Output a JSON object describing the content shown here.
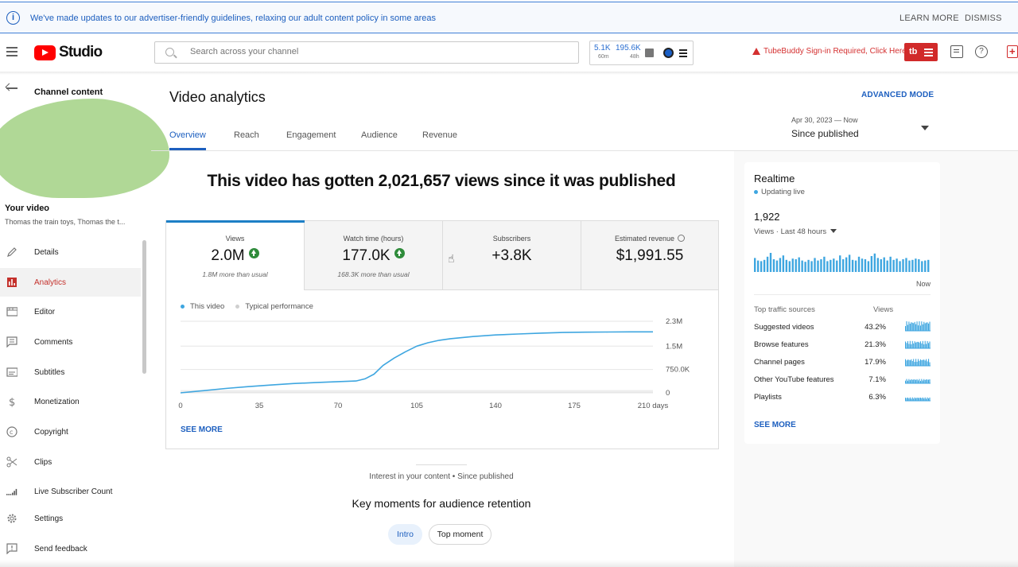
{
  "banner": {
    "message": "We've made updates to our advertiser-friendly guidelines, relaxing our adult content policy in some areas",
    "learn_more": "LEARN MORE",
    "dismiss": "DISMISS"
  },
  "header": {
    "logo_text": "Studio",
    "search_placeholder": "Search across your channel",
    "stats": [
      {
        "value": "5.1K",
        "period": "60m"
      },
      {
        "value": "195.6K",
        "period": "48h"
      }
    ],
    "tubebuddy_warning": "TubeBuddy Sign-in Required, Click Here",
    "tubebuddy_button": "tb",
    "help_glyph": "?"
  },
  "sidebar": {
    "title": "Channel content",
    "your_video_label": "Your video",
    "video_title": "Thomas the train toys, Thomas the t...",
    "items": [
      {
        "label": "Details",
        "icon": "pencil-icon"
      },
      {
        "label": "Analytics",
        "icon": "analytics-icon"
      },
      {
        "label": "Editor",
        "icon": "film-icon"
      },
      {
        "label": "Comments",
        "icon": "comment-icon"
      },
      {
        "label": "Subtitles",
        "icon": "subtitles-icon"
      },
      {
        "label": "Monetization",
        "icon": "dollar-icon"
      },
      {
        "label": "Copyright",
        "icon": "copyright-icon"
      },
      {
        "label": "Clips",
        "icon": "scissors-icon"
      },
      {
        "label": "Live Subscriber Count",
        "icon": "signal-bars-icon"
      },
      {
        "label": "Settings",
        "icon": "gear-icon"
      },
      {
        "label": "Send feedback",
        "icon": "feedback-icon"
      }
    ],
    "active_item": "Analytics"
  },
  "main": {
    "title": "Video analytics",
    "advanced_mode": "ADVANCED MODE",
    "tabs": [
      "Overview",
      "Reach",
      "Engagement",
      "Audience",
      "Revenue"
    ],
    "active_tab": "Overview",
    "date_range": "Apr 30, 2023 — Now",
    "date_label": "Since published",
    "headline": "This video has gotten 2,021,657 views since it was published",
    "metrics": [
      {
        "name": "Views",
        "value": "2.0M",
        "trend": "up",
        "sub": "1.8M more than usual"
      },
      {
        "name": "Watch time (hours)",
        "value": "177.0K",
        "trend": "up",
        "sub": "168.3K more than usual"
      },
      {
        "name": "Subscribers",
        "value": "+3.8K",
        "trend": "",
        "sub": ""
      },
      {
        "name": "Estimated revenue",
        "value": "$1,991.55",
        "trend": "",
        "sub": ""
      }
    ],
    "legend": {
      "this_video": "This video",
      "typical": "Typical performance"
    },
    "see_more": "SEE MORE",
    "interest_line": "Interest in your content • Since published",
    "key_moments_title": "Key moments for audience retention",
    "chips": [
      "Intro",
      "Top moment"
    ]
  },
  "chart_data": {
    "type": "line",
    "title": "",
    "xlabel": "",
    "ylabel": "",
    "x_ticks": [
      "0",
      "35",
      "70",
      "105",
      "140",
      "175",
      "210 days"
    ],
    "y_ticks": [
      "0",
      "750.0K",
      "1.5M",
      "2.3M"
    ],
    "xlim": [
      0,
      210
    ],
    "ylim": [
      0,
      2300000
    ],
    "grid": true,
    "series": [
      {
        "name": "This video",
        "color": "#3ea6e0",
        "x": [
          0,
          10,
          20,
          30,
          40,
          50,
          60,
          70,
          78,
          82,
          86,
          90,
          95,
          100,
          105,
          110,
          115,
          120,
          130,
          140,
          150,
          160,
          170,
          180,
          190,
          200,
          205,
          210
        ],
        "y": [
          0,
          70000,
          140000,
          200000,
          250000,
          300000,
          330000,
          360000,
          380000,
          450000,
          600000,
          880000,
          1120000,
          1320000,
          1500000,
          1610000,
          1690000,
          1740000,
          1810000,
          1860000,
          1890000,
          1920000,
          1940000,
          1950000,
          1955000,
          1960000,
          1960000,
          1960000
        ]
      }
    ],
    "typical_band_color": "#cfcfcf"
  },
  "realtime": {
    "title": "Realtime",
    "status": "Updating live",
    "count": "1,922",
    "period": "Views · Last 48 hours",
    "now_label": "Now",
    "bars": [
      22,
      18,
      17,
      19,
      24,
      30,
      20,
      18,
      22,
      26,
      19,
      17,
      21,
      20,
      23,
      18,
      16,
      19,
      17,
      22,
      18,
      20,
      24,
      17,
      19,
      21,
      18,
      26,
      20,
      23,
      27,
      19,
      18,
      24,
      21,
      20,
      17,
      25,
      29,
      22,
      20,
      23,
      18,
      24,
      19,
      21,
      17,
      20,
      22,
      18,
      19,
      21,
      20,
      17,
      18,
      19
    ],
    "bar_color": "#3ea6e0",
    "sources_header": {
      "name": "Top traffic sources",
      "views": "Views"
    },
    "sources": [
      {
        "name": "Suggested videos",
        "pct": "43.2%"
      },
      {
        "name": "Browse features",
        "pct": "21.3%"
      },
      {
        "name": "Channel pages",
        "pct": "17.9%"
      },
      {
        "name": "Other YouTube features",
        "pct": "7.1%"
      },
      {
        "name": "Playlists",
        "pct": "6.3%"
      }
    ],
    "see_more": "SEE MORE"
  },
  "colors": {
    "accent_blue": "#1d5fbf",
    "chart_line": "#3ea6e0",
    "analytics_red": "#c4302b",
    "positive_green": "#2e8b3a",
    "tubebuddy_red": "#d12a2a"
  }
}
